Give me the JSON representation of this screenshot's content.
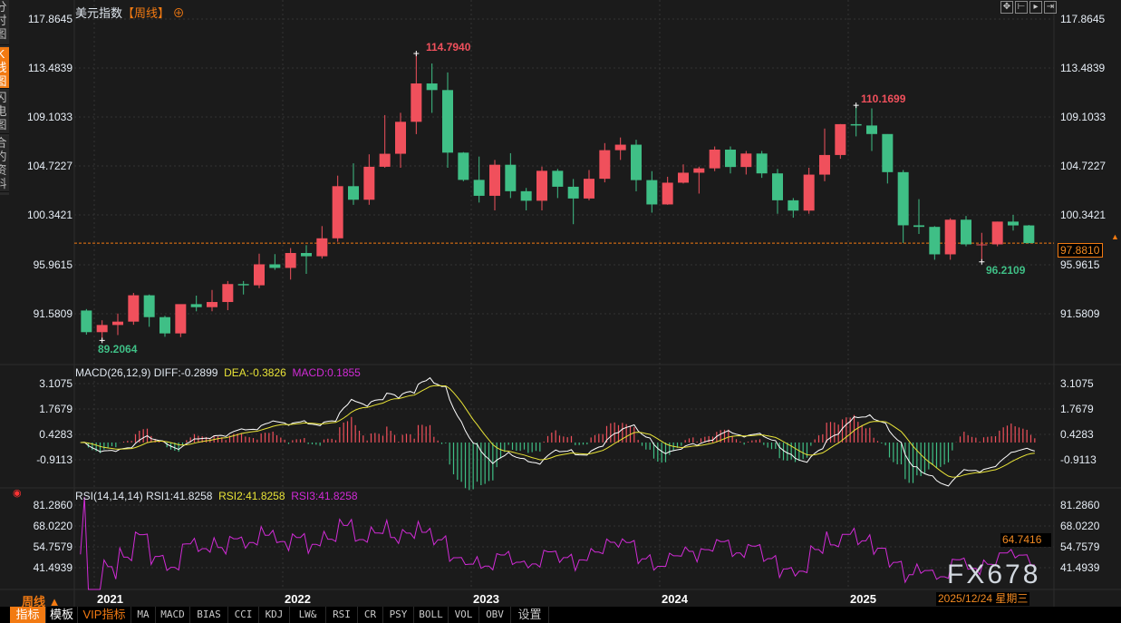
{
  "header": {
    "title": "美元指数",
    "period": "【周线】",
    "crosshair_icon": "crosshair-circle-icon"
  },
  "sidebar": {
    "items": [
      {
        "label": "分时图"
      },
      {
        "label": "K线图",
        "active": true
      },
      {
        "label": "闪电图"
      },
      {
        "label": "合约资料"
      }
    ]
  },
  "top_tools": [
    "move-crosshair-icon",
    "zoom-range-icon",
    "play-range-icon",
    "shift-right-icon"
  ],
  "price_axis": {
    "ticks": [
      "117.8645",
      "113.4839",
      "109.1033",
      "104.7227",
      "100.3421",
      "95.9615",
      "91.5809"
    ],
    "last_price": "97.8810"
  },
  "annotations": {
    "high": "114.7940",
    "high2": "110.1699",
    "low": "89.2064",
    "low2": "96.2109"
  },
  "macd": {
    "label": "MACD(26,12,9)",
    "diff": "DIFF:-0.2899",
    "dea": "DEA:-0.3826",
    "macd": "MACD:0.1855",
    "ticks": [
      "3.1075",
      "1.7679",
      "0.4283",
      "-0.9113"
    ]
  },
  "rsi": {
    "label": "RSI(14,14,14)",
    "rsi1": "RSI1:41.8258",
    "rsi2": "RSI2:41.8258",
    "rsi3": "RSI3:41.8258",
    "ticks": [
      "81.2860",
      "68.0220",
      "54.7579",
      "41.4939"
    ],
    "current": "64.7416"
  },
  "x_axis": {
    "years": [
      "2021",
      "2022",
      "2023",
      "2024",
      "2025"
    ],
    "cursor_date": "2025/12/24 星期三",
    "period_selector": "周线 ▲"
  },
  "watermark": "FX678",
  "toolbar": {
    "items": [
      "指标",
      "模板",
      "VIP指标",
      "MA",
      "MACD",
      "BIAS",
      "CCI",
      "KDJ",
      "LW&",
      "RSI",
      "CR",
      "PSY",
      "BOLL",
      "VOL",
      "OBV",
      "设置"
    ]
  },
  "colors": {
    "up": "#f0505c",
    "down": "#3fbf86",
    "diff": "#ffffff",
    "dea": "#e8e337",
    "macd": "#d12bd6",
    "rsi": "#d12bd6",
    "accent": "#f27a12",
    "background": "#1b1b1b"
  },
  "chart_data": {
    "type": "candlestick",
    "title": "美元指数",
    "candle_fields": [
      "month",
      "open",
      "high",
      "low",
      "close"
    ],
    "candles": [
      [
        "2020-12",
        91.87,
        92.0,
        89.72,
        89.94
      ],
      [
        "2021-01",
        89.94,
        91.0,
        89.21,
        90.58
      ],
      [
        "2021-02",
        90.58,
        91.6,
        89.68,
        90.88
      ],
      [
        "2021-03",
        90.88,
        93.44,
        90.6,
        93.23
      ],
      [
        "2021-04",
        93.23,
        93.3,
        90.42,
        91.28
      ],
      [
        "2021-05",
        91.28,
        91.4,
        89.53,
        89.83
      ],
      [
        "2021-06",
        89.83,
        92.4,
        89.5,
        92.44
      ],
      [
        "2021-07",
        92.44,
        93.2,
        91.8,
        92.17
      ],
      [
        "2021-08",
        92.17,
        93.7,
        91.8,
        92.63
      ],
      [
        "2021-09",
        92.63,
        94.5,
        91.9,
        94.23
      ],
      [
        "2021-10",
        94.23,
        94.5,
        93.3,
        94.12
      ],
      [
        "2021-11",
        94.12,
        96.94,
        93.87,
        95.99
      ],
      [
        "2021-12",
        95.99,
        96.9,
        95.5,
        95.67
      ],
      [
        "2022-01",
        95.67,
        97.44,
        94.63,
        97.0
      ],
      [
        "2022-02",
        97.0,
        97.7,
        95.14,
        96.71
      ],
      [
        "2022-03",
        96.71,
        99.4,
        96.5,
        98.31
      ],
      [
        "2022-04",
        98.31,
        103.9,
        98.0,
        102.96
      ],
      [
        "2022-05",
        102.96,
        105.0,
        101.3,
        101.75
      ],
      [
        "2022-06",
        101.75,
        105.8,
        101.3,
        104.69
      ],
      [
        "2022-07",
        104.69,
        109.3,
        104.6,
        105.85
      ],
      [
        "2022-08",
        105.85,
        109.5,
        104.6,
        108.7
      ],
      [
        "2022-09",
        108.7,
        114.79,
        107.6,
        112.12
      ],
      [
        "2022-10",
        112.12,
        113.9,
        109.5,
        111.53
      ],
      [
        "2022-11",
        111.53,
        113.1,
        104.6,
        105.95
      ],
      [
        "2022-12",
        105.95,
        106.0,
        103.4,
        103.52
      ],
      [
        "2023-01",
        103.52,
        105.6,
        101.5,
        102.1
      ],
      [
        "2023-02",
        102.1,
        105.3,
        100.8,
        104.87
      ],
      [
        "2023-03",
        104.87,
        105.9,
        101.9,
        102.51
      ],
      [
        "2023-04",
        102.51,
        102.8,
        100.8,
        101.66
      ],
      [
        "2023-05",
        101.66,
        104.7,
        100.8,
        104.33
      ],
      [
        "2023-06",
        104.33,
        104.5,
        101.9,
        102.91
      ],
      [
        "2023-07",
        102.91,
        103.6,
        99.57,
        101.86
      ],
      [
        "2023-08",
        101.86,
        104.4,
        101.7,
        103.62
      ],
      [
        "2023-09",
        103.62,
        106.8,
        103.3,
        106.17
      ],
      [
        "2023-10",
        106.17,
        107.3,
        105.3,
        106.66
      ],
      [
        "2023-11",
        106.66,
        107.1,
        102.5,
        103.5
      ],
      [
        "2023-12",
        103.5,
        104.3,
        100.6,
        101.33
      ],
      [
        "2024-01",
        101.33,
        103.8,
        101.3,
        103.27
      ],
      [
        "2024-02",
        103.27,
        104.9,
        103.2,
        104.16
      ],
      [
        "2024-03",
        104.16,
        104.7,
        102.3,
        104.55
      ],
      [
        "2024-04",
        104.55,
        106.5,
        104.3,
        106.22
      ],
      [
        "2024-05",
        106.22,
        106.5,
        104.1,
        104.67
      ],
      [
        "2024-06",
        104.67,
        106.1,
        104.0,
        105.87
      ],
      [
        "2024-07",
        105.87,
        106.1,
        103.7,
        104.1
      ],
      [
        "2024-08",
        104.1,
        104.5,
        100.5,
        101.7
      ],
      [
        "2024-09",
        101.7,
        101.9,
        100.15,
        100.78
      ],
      [
        "2024-10",
        100.78,
        104.6,
        100.5,
        103.99
      ],
      [
        "2024-11",
        103.99,
        108.1,
        103.4,
        105.74
      ],
      [
        "2024-12",
        105.74,
        108.5,
        105.4,
        108.49
      ],
      [
        "2025-01",
        108.49,
        110.17,
        107.4,
        108.37
      ],
      [
        "2025-02",
        108.37,
        109.9,
        106.1,
        107.61
      ],
      [
        "2025-03",
        107.61,
        107.6,
        103.2,
        104.21
      ],
      [
        "2025-04",
        104.21,
        104.4,
        97.9,
        99.47
      ],
      [
        "2025-05",
        99.47,
        101.8,
        98.7,
        99.33
      ],
      [
        "2025-06",
        99.33,
        99.4,
        96.4,
        96.88
      ],
      [
        "2025-07",
        96.88,
        100.1,
        96.4,
        99.97
      ],
      [
        "2025-08",
        99.97,
        100.3,
        97.6,
        97.77
      ],
      [
        "2025-09",
        97.77,
        98.8,
        96.21,
        97.77
      ],
      [
        "2025-10",
        97.77,
        99.8,
        97.6,
        99.8
      ],
      [
        "2025-11",
        99.8,
        100.4,
        99.0,
        99.46
      ],
      [
        "2025-12",
        99.46,
        99.5,
        97.88,
        97.88
      ]
    ],
    "ylim": [
      91.5809,
      117.8645
    ],
    "macd_ylim": [
      -0.9113,
      3.1075
    ],
    "rsi_ylim": [
      41.4939,
      81.286
    ],
    "grid": true
  }
}
